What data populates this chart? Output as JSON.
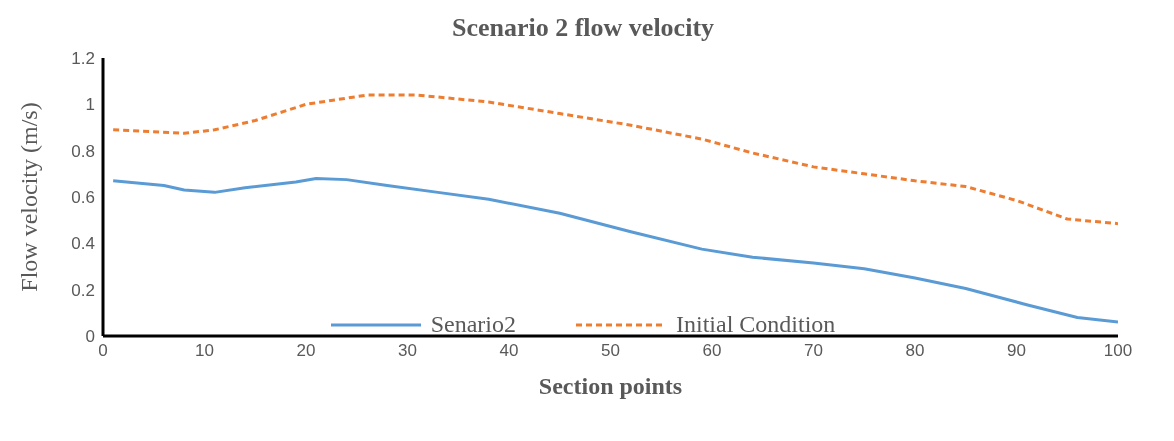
{
  "chart_data": {
    "type": "line",
    "title": "Scenario 2 flow velocity",
    "xlabel": "Section points",
    "ylabel": "Flow velocity (m/s)",
    "xlim": [
      0,
      100
    ],
    "xticks": [
      0,
      10,
      20,
      30,
      40,
      50,
      60,
      70,
      80,
      90,
      100
    ],
    "ylim": [
      0,
      1.2
    ],
    "yticks": [
      0,
      0.2,
      0.4,
      0.6,
      0.8,
      1,
      1.2
    ],
    "grid": false,
    "legend": "bottom",
    "marker": "none",
    "series": [
      {
        "name": "Senario2",
        "color": "#5b9bd5",
        "line_style": "solid",
        "x": [
          1,
          6,
          8,
          11,
          14,
          19,
          21,
          24,
          28,
          33,
          38,
          45,
          52,
          59,
          64,
          70,
          75,
          80,
          85,
          91,
          96,
          100
        ],
        "values": [
          0.67,
          0.65,
          0.63,
          0.62,
          0.64,
          0.665,
          0.68,
          0.675,
          0.65,
          0.62,
          0.59,
          0.53,
          0.45,
          0.375,
          0.34,
          0.315,
          0.29,
          0.25,
          0.205,
          0.135,
          0.08,
          0.06
        ]
      },
      {
        "name": "Initial Condition",
        "color": "#ed7d31",
        "line_style": "dashed",
        "x": [
          1,
          8,
          11,
          15,
          20,
          26,
          31,
          38,
          45,
          52,
          59,
          64,
          70,
          75,
          80,
          85,
          90,
          95,
          100
        ],
        "values": [
          0.89,
          0.875,
          0.89,
          0.93,
          1.0,
          1.04,
          1.04,
          1.01,
          0.96,
          0.91,
          0.85,
          0.79,
          0.73,
          0.7,
          0.67,
          0.645,
          0.585,
          0.505,
          0.485
        ]
      }
    ]
  }
}
